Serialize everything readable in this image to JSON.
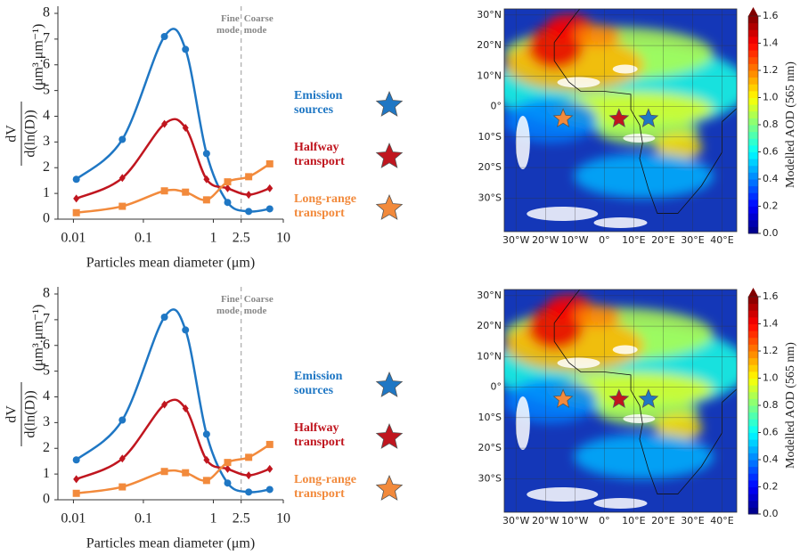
{
  "chart_data": [
    {
      "type": "line",
      "xlabel": "Particles mean diameter (μm)",
      "ylabel_numerator": "dV",
      "ylabel_denominator": "d(ln(D))",
      "ylabel_units": "(μm³.μm⁻¹)",
      "xlog": true,
      "xlim": [
        0.006,
        10
      ],
      "xticks": [
        0.01,
        0.1,
        1,
        2.5,
        10
      ],
      "ylim": [
        0,
        8
      ],
      "yticks": [
        0,
        1,
        2,
        3,
        4,
        5,
        6,
        7,
        8
      ],
      "vline": 2.5,
      "annotations": [
        {
          "text": "Fine mode",
          "side": "left"
        },
        {
          "text": "Coarse mode",
          "side": "right"
        }
      ],
      "x": [
        0.011,
        0.05,
        0.2,
        0.4,
        0.8,
        1.6,
        3.2,
        6.4
      ],
      "series": [
        {
          "name": "Emission sources",
          "color": "#1f77c4",
          "marker": "circle",
          "values": [
            1.55,
            3.1,
            7.1,
            6.6,
            2.55,
            0.65,
            0.3,
            0.4
          ]
        },
        {
          "name": "Halfway transport",
          "color": "#c0161f",
          "marker": "diamond",
          "values": [
            0.8,
            1.6,
            3.7,
            3.55,
            1.55,
            1.2,
            0.95,
            1.2
          ]
        },
        {
          "name": "Long-range transport",
          "color": "#f28a3c",
          "marker": "square",
          "values": [
            0.25,
            0.5,
            1.1,
            1.05,
            0.75,
            1.45,
            1.65,
            2.15
          ]
        }
      ]
    },
    {
      "type": "map",
      "xlim": [
        -34,
        45
      ],
      "ylim": [
        -41,
        32
      ],
      "xticks": [
        {
          "value": -30,
          "label": "30°W"
        },
        {
          "value": -20,
          "label": "20°W"
        },
        {
          "value": -10,
          "label": "10°W"
        },
        {
          "value": 0,
          "label": "0°"
        },
        {
          "value": 10,
          "label": "10°E"
        },
        {
          "value": 20,
          "label": "20°E"
        },
        {
          "value": 30,
          "label": "30°E"
        },
        {
          "value": 40,
          "label": "40°E"
        }
      ],
      "yticks": [
        {
          "value": 30,
          "label": "30°N"
        },
        {
          "value": 20,
          "label": "20°N"
        },
        {
          "value": 10,
          "label": "10°N"
        },
        {
          "value": 0,
          "label": "0°"
        },
        {
          "value": -10,
          "label": "10°S"
        },
        {
          "value": -20,
          "label": "20°S"
        },
        {
          "value": -30,
          "label": "30°S"
        }
      ],
      "sites": [
        {
          "lon": 15,
          "lat": -4,
          "color": "#1f77c4"
        },
        {
          "lon": 5,
          "lat": -4,
          "color": "#c0161f"
        },
        {
          "lon": -14,
          "lat": -4,
          "color": "#f28a3c"
        }
      ],
      "colorbar": {
        "label": "Modelled AOD (565 nm)",
        "colormap": "jet",
        "extend": "max",
        "lim": [
          0,
          1.6
        ],
        "ticks": [
          {
            "value": 0,
            "label": "0.0"
          },
          0.2,
          0.4,
          0.6,
          0.8,
          {
            "value": 1,
            "label": "1.0"
          },
          1.2,
          1.4,
          1.6
        ]
      }
    },
    {
      "type": "line",
      "xlabel": "Particles mean diameter (μm)",
      "ylabel_numerator": "dV",
      "ylabel_denominator": "d(ln(D))",
      "ylabel_units": "(μm³.μm⁻¹)",
      "xlog": true,
      "xlim": [
        0.006,
        10
      ],
      "xticks": [
        0.01,
        0.1,
        1,
        2.5,
        10
      ],
      "ylim": [
        0,
        8
      ],
      "yticks": [
        0,
        1,
        2,
        3,
        4,
        5,
        6,
        7,
        8
      ],
      "vline": 2.5,
      "annotations": [
        {
          "text": "Fine mode",
          "side": "left"
        },
        {
          "text": "Coarse mode",
          "side": "right"
        }
      ],
      "x": [
        0.011,
        0.05,
        0.2,
        0.4,
        0.8,
        1.6,
        3.2,
        6.4
      ],
      "series": [
        {
          "name": "Emission sources",
          "color": "#1f77c4",
          "marker": "circle",
          "values": [
            1.55,
            3.1,
            7.1,
            6.6,
            2.55,
            0.65,
            0.3,
            0.4
          ]
        },
        {
          "name": "Halfway transport",
          "color": "#c0161f",
          "marker": "diamond",
          "values": [
            0.8,
            1.6,
            3.7,
            3.55,
            1.55,
            1.2,
            0.95,
            1.2
          ]
        },
        {
          "name": "Long-range transport",
          "color": "#f28a3c",
          "marker": "square",
          "values": [
            0.25,
            0.5,
            1.1,
            1.05,
            0.75,
            1.45,
            1.65,
            2.15
          ]
        }
      ]
    },
    {
      "type": "map",
      "xlim": [
        -34,
        45
      ],
      "ylim": [
        -41,
        32
      ],
      "xticks": [
        {
          "value": -30,
          "label": "30°W"
        },
        {
          "value": -20,
          "label": "20°W"
        },
        {
          "value": -10,
          "label": "10°W"
        },
        {
          "value": 0,
          "label": "0°"
        },
        {
          "value": 10,
          "label": "10°E"
        },
        {
          "value": 20,
          "label": "20°E"
        },
        {
          "value": 30,
          "label": "30°E"
        },
        {
          "value": 40,
          "label": "40°E"
        }
      ],
      "yticks": [
        {
          "value": 30,
          "label": "30°N"
        },
        {
          "value": 20,
          "label": "20°N"
        },
        {
          "value": 10,
          "label": "10°N"
        },
        {
          "value": 0,
          "label": "0°"
        },
        {
          "value": -10,
          "label": "10°S"
        },
        {
          "value": -20,
          "label": "20°S"
        },
        {
          "value": -30,
          "label": "30°S"
        }
      ],
      "sites": [
        {
          "lon": 15,
          "lat": -4,
          "color": "#1f77c4"
        },
        {
          "lon": 5,
          "lat": -4,
          "color": "#c0161f"
        },
        {
          "lon": -14,
          "lat": -4,
          "color": "#f28a3c"
        }
      ],
      "colorbar": {
        "label": "Modelled AOD (565 nm)",
        "colormap": "jet",
        "extend": "max",
        "lim": [
          0,
          1.6
        ],
        "ticks": [
          {
            "value": 0,
            "label": "0.0"
          },
          0.2,
          0.4,
          0.6,
          0.8,
          {
            "value": 1,
            "label": "1.0"
          },
          1.2,
          1.4,
          1.6
        ]
      }
    }
  ]
}
